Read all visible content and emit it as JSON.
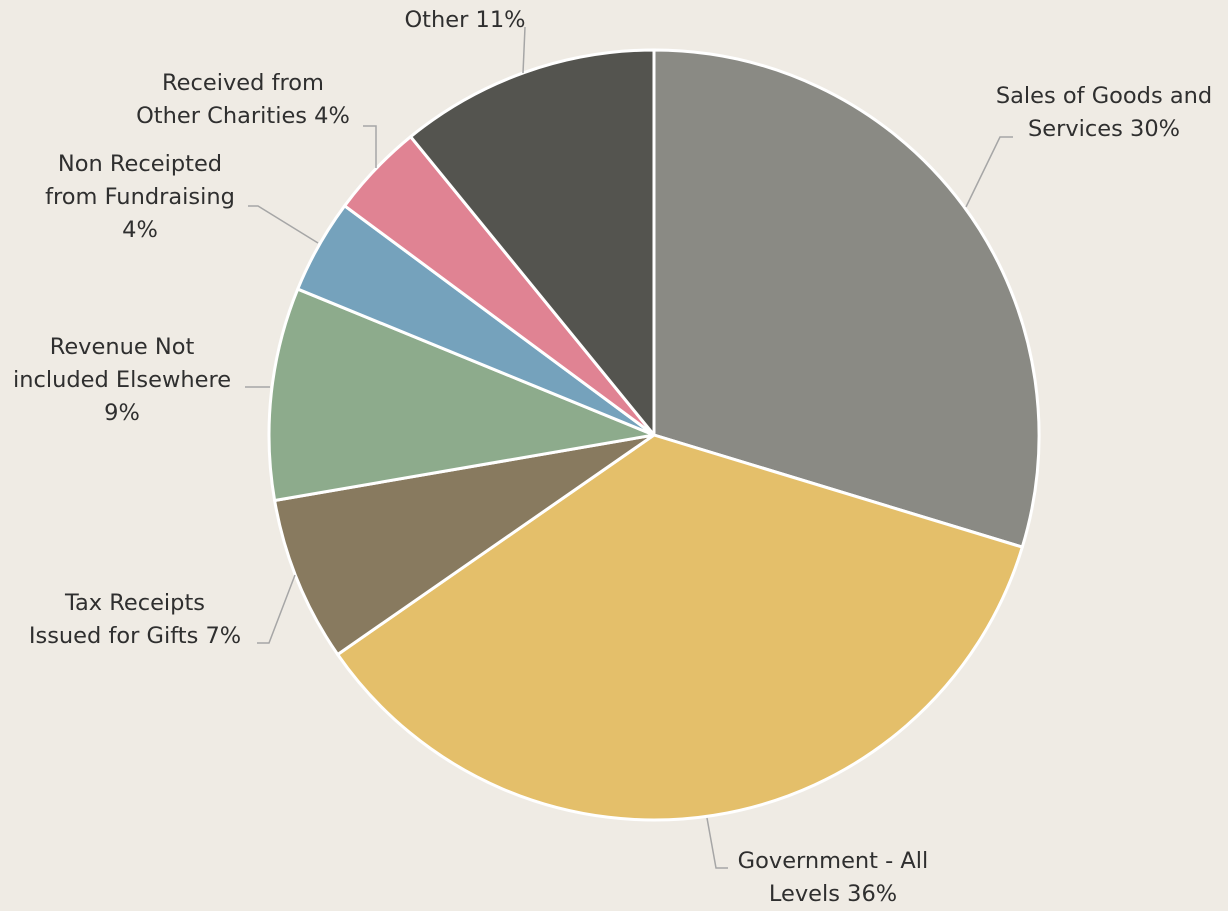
{
  "chart_data": {
    "type": "pie",
    "title": "",
    "start_angle_deg": 0,
    "direction": "clockwise",
    "legend": "none",
    "slices": [
      {
        "label_lines": [
          "Sales of Goods and",
          "Services 30%"
        ],
        "value": 30,
        "color": "#8A8A84"
      },
      {
        "label_lines": [
          "Government - All",
          "Levels 36%"
        ],
        "value": 36,
        "color": "#E4BF6A"
      },
      {
        "label_lines": [
          "Tax Receipts",
          "Issued for Gifts 7%"
        ],
        "value": 7,
        "color": "#887A5F"
      },
      {
        "label_lines": [
          "Revenue Not",
          "included Elsewhere",
          "9%"
        ],
        "value": 9,
        "color": "#8DAB8C"
      },
      {
        "label_lines": [
          "Non Receipted",
          "from Fundraising",
          "4%"
        ],
        "value": 4,
        "color": "#75A2BC"
      },
      {
        "label_lines": [
          "Received from",
          "Other Charities 4%"
        ],
        "value": 4,
        "color": "#E08393"
      },
      {
        "label_lines": [
          "Other 11%"
        ],
        "value": 11,
        "color": "#54544F"
      }
    ]
  }
}
